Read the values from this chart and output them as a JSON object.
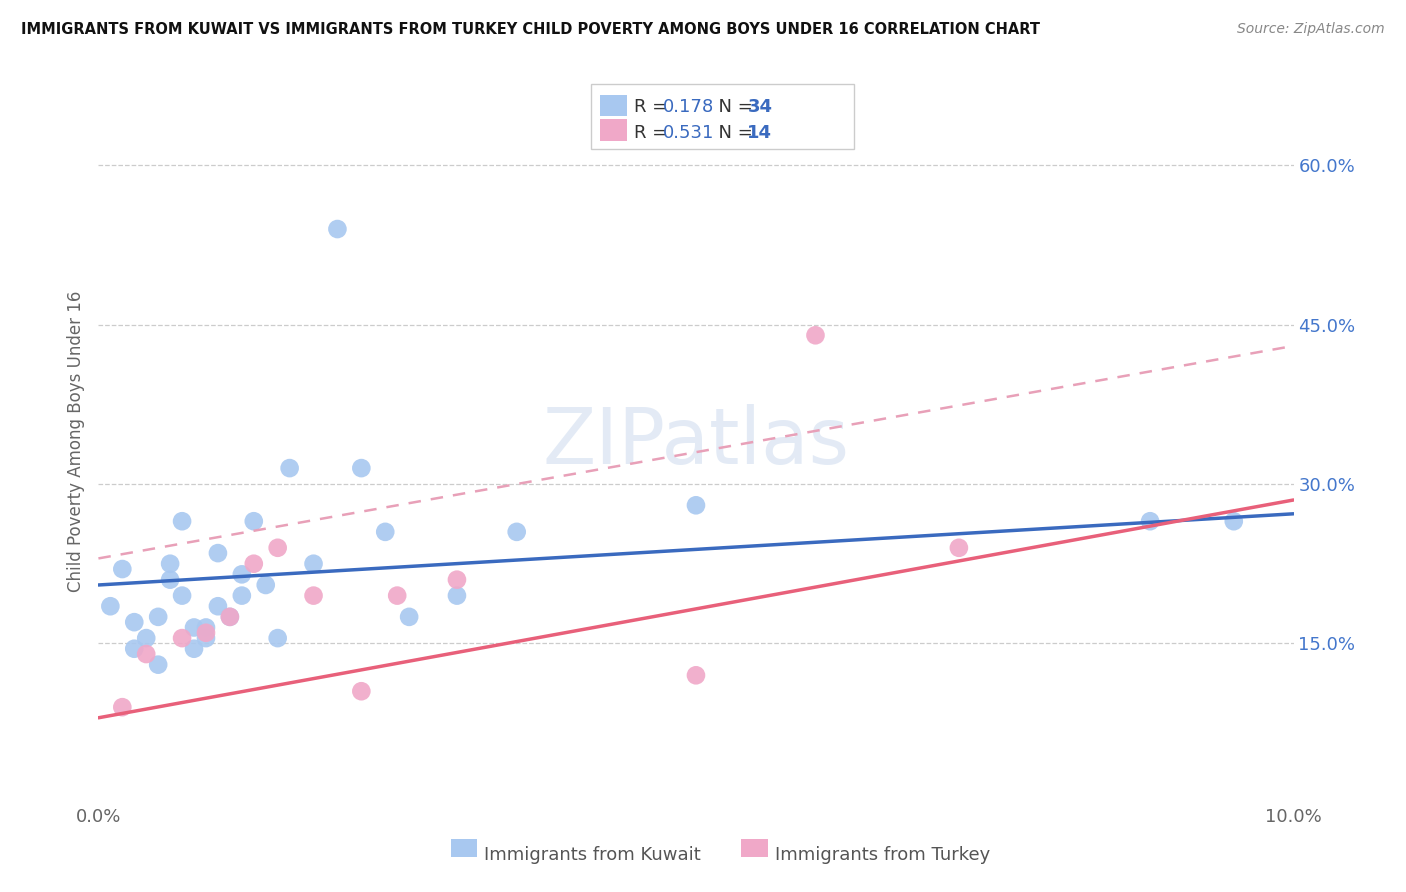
{
  "title": "IMMIGRANTS FROM KUWAIT VS IMMIGRANTS FROM TURKEY CHILD POVERTY AMONG BOYS UNDER 16 CORRELATION CHART",
  "source": "Source: ZipAtlas.com",
  "ylabel": "Child Poverty Among Boys Under 16",
  "xlim": [
    0.0,
    0.1
  ],
  "ylim": [
    0.0,
    0.68
  ],
  "xtick_vals": [
    0.0,
    0.02,
    0.04,
    0.06,
    0.08,
    0.1
  ],
  "xticklabels": [
    "0.0%",
    "",
    "",
    "",
    "",
    "10.0%"
  ],
  "yticks_right": [
    0.15,
    0.3,
    0.45,
    0.6
  ],
  "ytick_right_labels": [
    "15.0%",
    "30.0%",
    "45.0%",
    "60.0%"
  ],
  "kuwait_R": 0.178,
  "kuwait_N": 34,
  "turkey_R": 0.531,
  "turkey_N": 14,
  "kuwait_color": "#a8c8f0",
  "turkey_color": "#f0a8c8",
  "kuwait_line_color": "#3a6abf",
  "turkey_line_color": "#e8607a",
  "dashed_line_color": "#e8a0b8",
  "legend_label_kuwait": "Immigrants from Kuwait",
  "legend_label_turkey": "Immigrants from Turkey",
  "watermark_text": "ZIPatlas",
  "kuwait_x": [
    0.001,
    0.002,
    0.003,
    0.003,
    0.004,
    0.005,
    0.005,
    0.006,
    0.006,
    0.007,
    0.007,
    0.008,
    0.008,
    0.009,
    0.009,
    0.01,
    0.01,
    0.011,
    0.012,
    0.012,
    0.013,
    0.014,
    0.015,
    0.016,
    0.018,
    0.02,
    0.022,
    0.024,
    0.026,
    0.03,
    0.035,
    0.05,
    0.088,
    0.095
  ],
  "kuwait_y": [
    0.185,
    0.22,
    0.17,
    0.145,
    0.155,
    0.175,
    0.13,
    0.21,
    0.225,
    0.265,
    0.195,
    0.165,
    0.145,
    0.155,
    0.165,
    0.235,
    0.185,
    0.175,
    0.195,
    0.215,
    0.265,
    0.205,
    0.155,
    0.315,
    0.225,
    0.54,
    0.315,
    0.255,
    0.175,
    0.195,
    0.255,
    0.28,
    0.265,
    0.265
  ],
  "turkey_x": [
    0.002,
    0.004,
    0.007,
    0.009,
    0.011,
    0.013,
    0.015,
    0.018,
    0.022,
    0.025,
    0.03,
    0.05,
    0.06,
    0.072
  ],
  "turkey_y": [
    0.09,
    0.14,
    0.155,
    0.16,
    0.175,
    0.225,
    0.24,
    0.195,
    0.105,
    0.195,
    0.21,
    0.12,
    0.44,
    0.24
  ],
  "kuwait_line": [
    0.205,
    0.272
  ],
  "turkey_line": [
    0.08,
    0.285
  ],
  "dashed_line": [
    0.23,
    0.43
  ]
}
